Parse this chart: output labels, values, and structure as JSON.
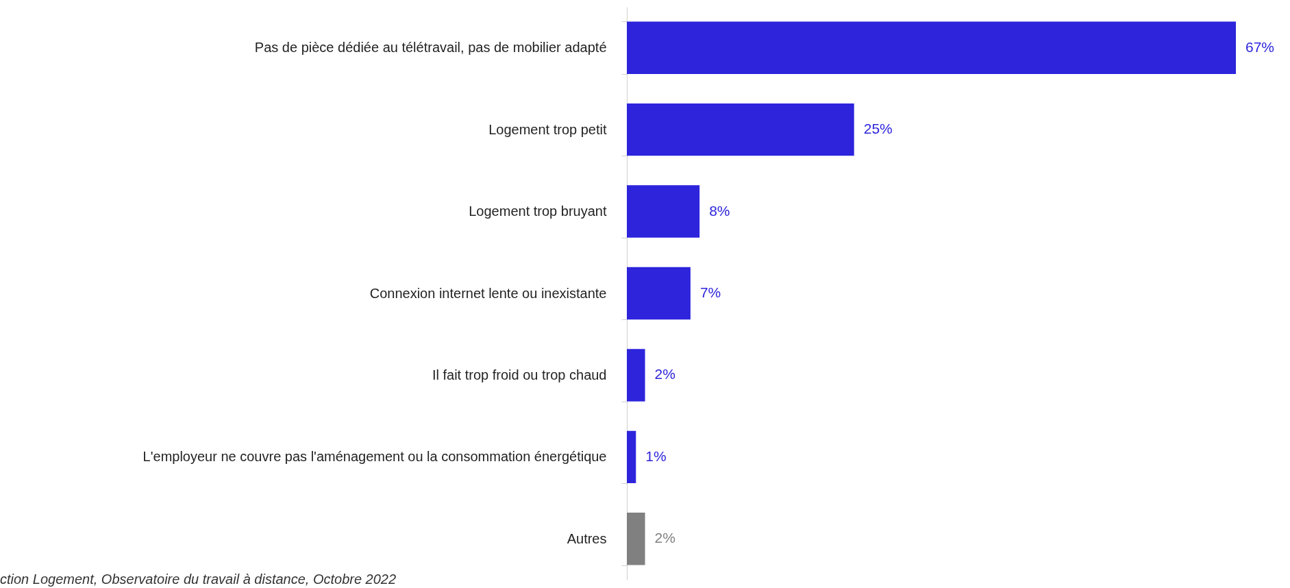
{
  "chart_data": {
    "type": "bar",
    "orientation": "horizontal",
    "categories": [
      "Pas de pièce dédiée au télétravail, pas de mobilier adapté",
      "Logement trop petit",
      "Logement trop bruyant",
      "Connexion internet lente ou inexistante",
      "Il fait trop froid ou trop chaud",
      "L'employeur ne couvre pas l'aménagement ou la consommation énergétique ",
      "Autres"
    ],
    "values": [
      67,
      25,
      8,
      7,
      2,
      1,
      2
    ],
    "value_labels": [
      "67%",
      "25%",
      "8%",
      "7%",
      "2%",
      "1%",
      "2%"
    ],
    "colors": [
      "#2d24dc",
      "#2d24dc",
      "#2d24dc",
      "#2d24dc",
      "#2d24dc",
      "#2d24dc",
      "#808080"
    ],
    "tick_labels": "y",
    "grid": false,
    "annotations": [
      "ction Logement, Observatoire du travail à distance, Octobre 2022"
    ]
  }
}
